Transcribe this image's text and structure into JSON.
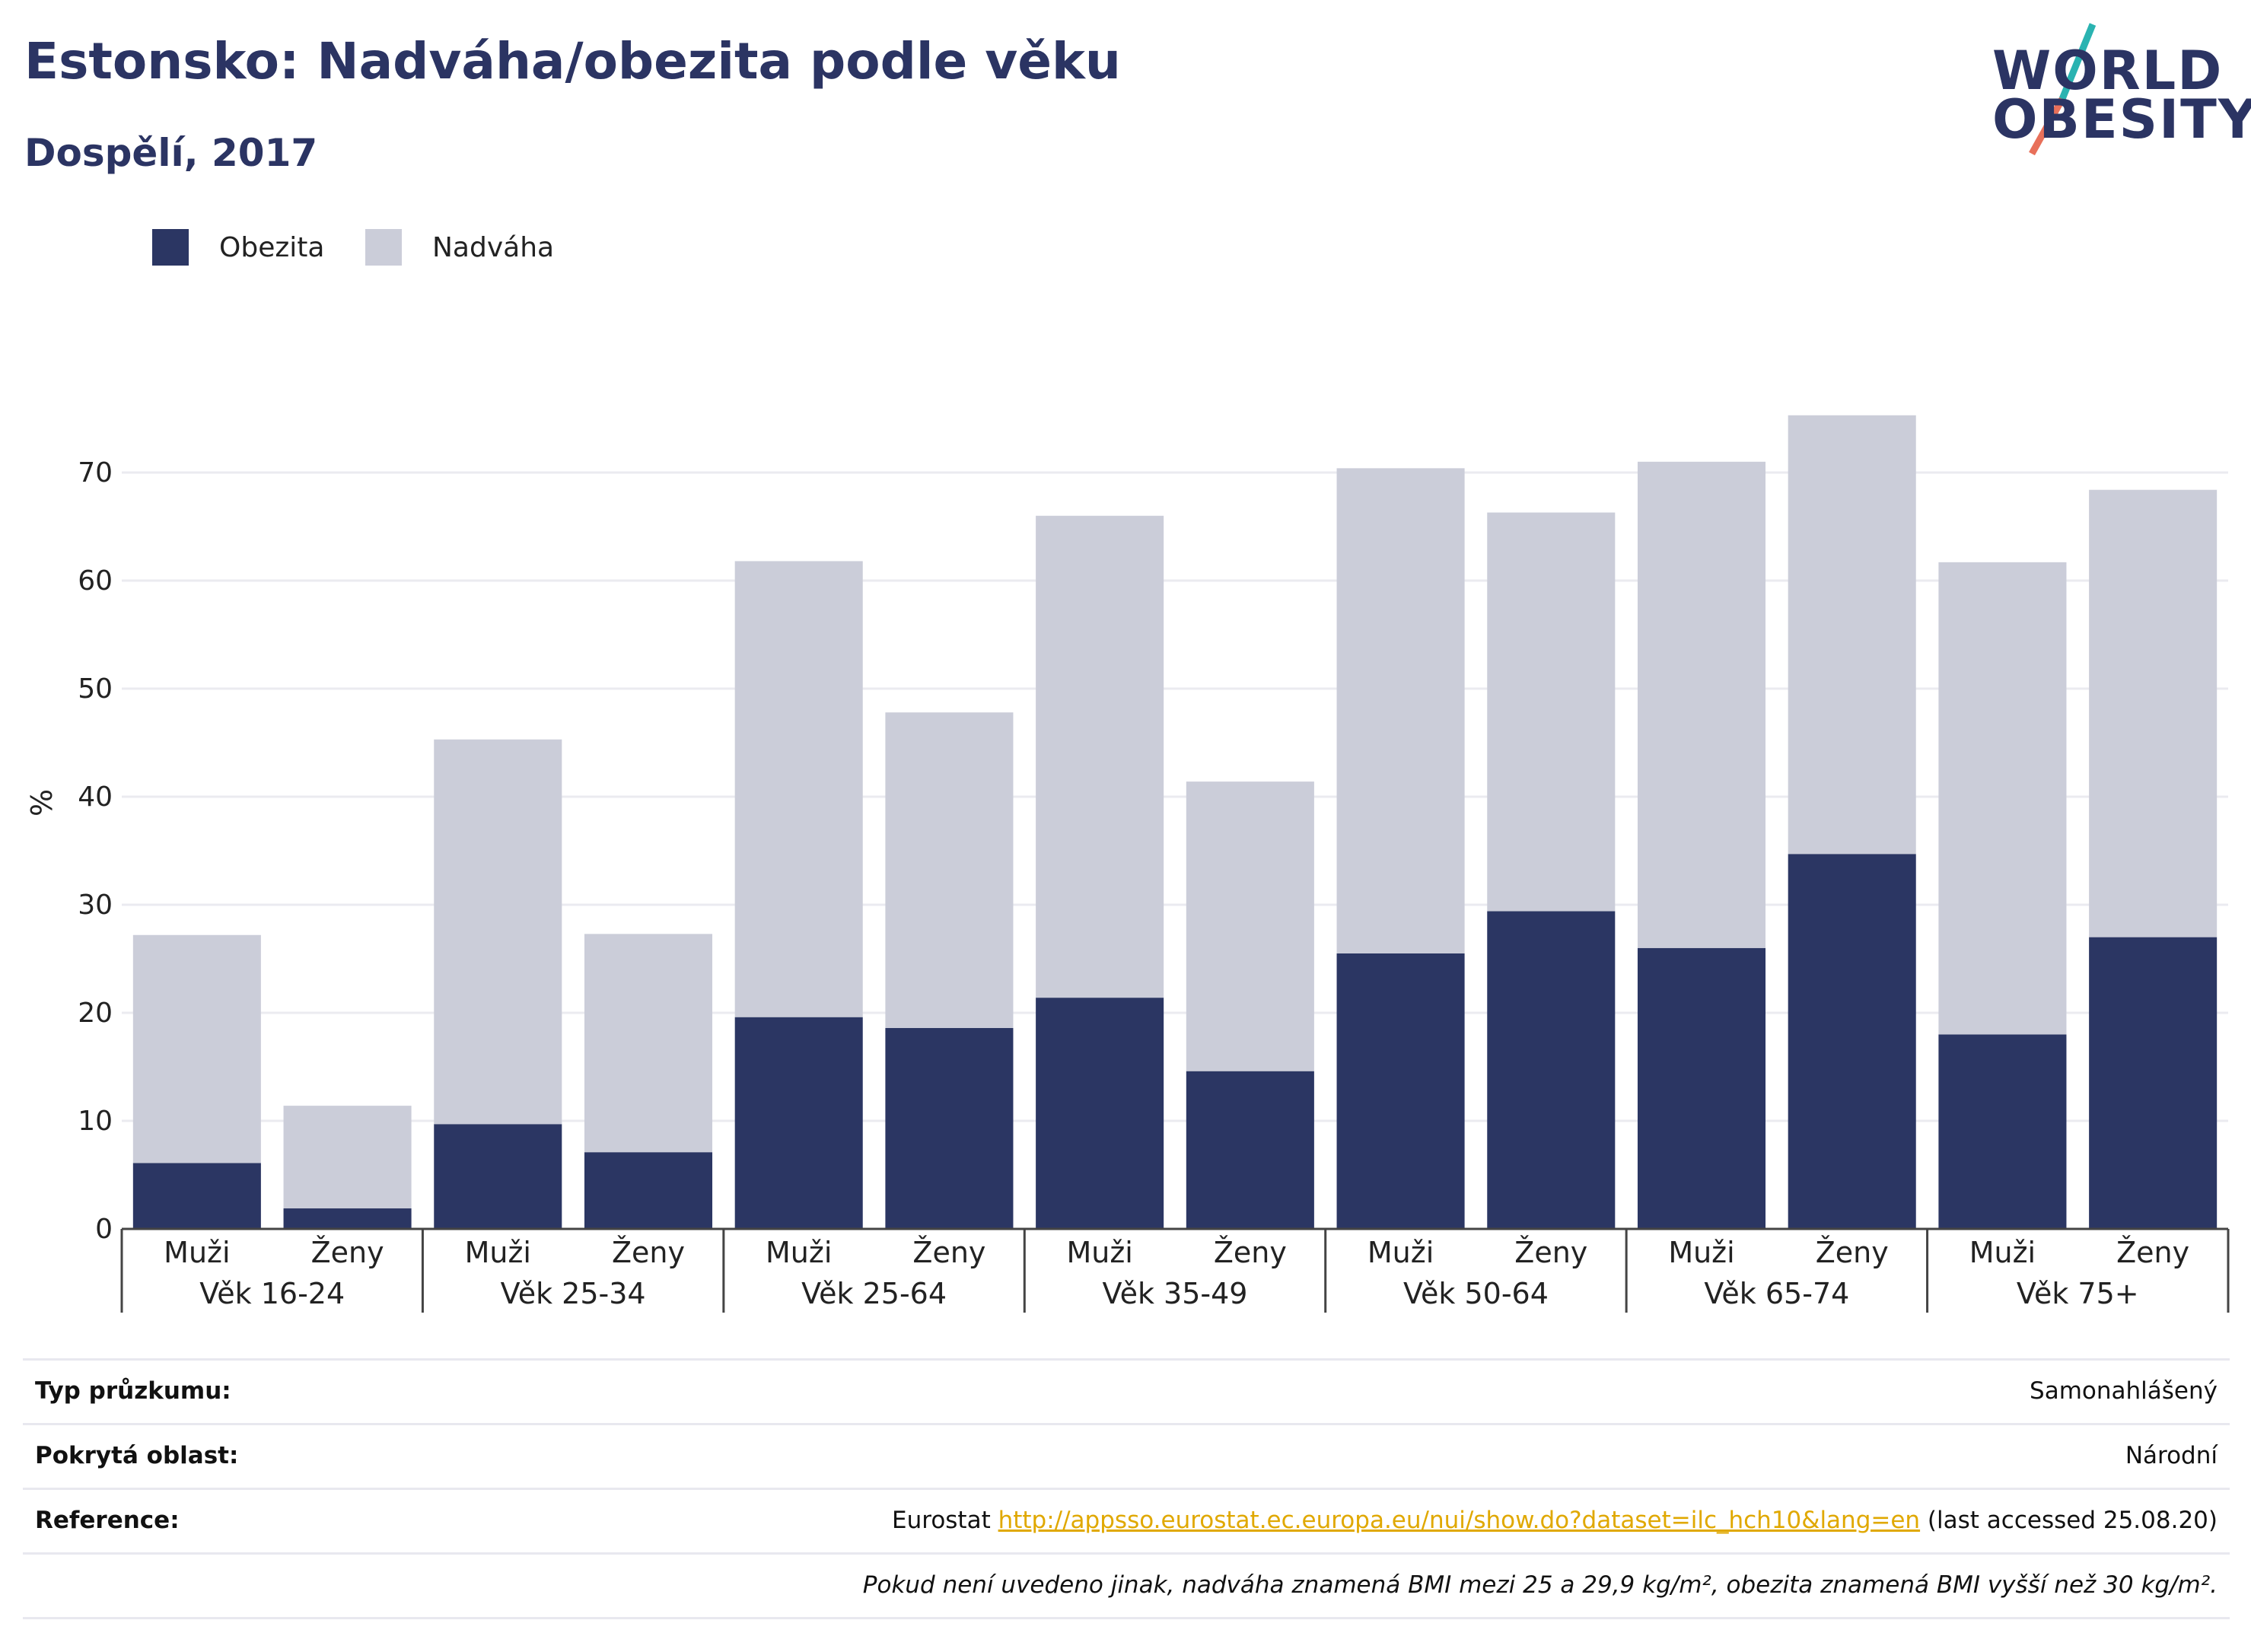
{
  "header": {
    "title": "Estonsko: Nadváha/obezita podle věku",
    "subtitle": "Dospělí, 2017"
  },
  "logo": {
    "line1": "WORLD",
    "line2": "OBESITY",
    "accent_teal": "#2ab3b1",
    "accent_coral": "#e8705a"
  },
  "legend": [
    {
      "label": "Obezita",
      "color": "#2b3663"
    },
    {
      "label": "Nadváha",
      "color": "#cbcdd9"
    }
  ],
  "chart_data": {
    "type": "bar",
    "stacked": true,
    "ylabel": "%",
    "ylim": [
      0,
      80
    ],
    "yticks": [
      0,
      10,
      20,
      30,
      40,
      50,
      60,
      70
    ],
    "grid": true,
    "groups": [
      "Věk 16-24",
      "Věk 25-34",
      "Věk 25-64",
      "Věk 35-49",
      "Věk 50-64",
      "Věk 65-74",
      "Věk 75+"
    ],
    "subcategories": [
      "Muži",
      "Ženy"
    ],
    "series": [
      {
        "name": "Obezita",
        "color": "#2b3663",
        "values": [
          6.1,
          1.9,
          9.7,
          7.1,
          19.6,
          18.6,
          21.4,
          14.6,
          25.5,
          29.4,
          26.0,
          34.7,
          18.0,
          27.0
        ]
      },
      {
        "name": "Nadváha",
        "color": "#cbcdd9",
        "values": [
          21.1,
          9.5,
          35.6,
          20.2,
          42.2,
          29.2,
          44.6,
          26.8,
          44.9,
          36.9,
          45.0,
          40.6,
          43.7,
          41.4
        ]
      }
    ]
  },
  "footer": {
    "survey_type_label": "Typ průzkumu:",
    "survey_type_value": "Samonahlášený",
    "coverage_label": "Pokrytá oblast:",
    "coverage_value": "Národní",
    "reference_label": "Reference:",
    "reference_prefix": "Eurostat ",
    "reference_link": "http://appsso.eurostat.ec.europa.eu/nui/show.do?dataset=ilc_hch10&lang=en",
    "reference_suffix": " (last accessed 25.08.20)",
    "note": "Pokud není uvedeno jinak, nadváha znamená BMI mezi 25 a 29,9 kg/m², obezita znamená BMI vyšší než 30 kg/m²."
  }
}
